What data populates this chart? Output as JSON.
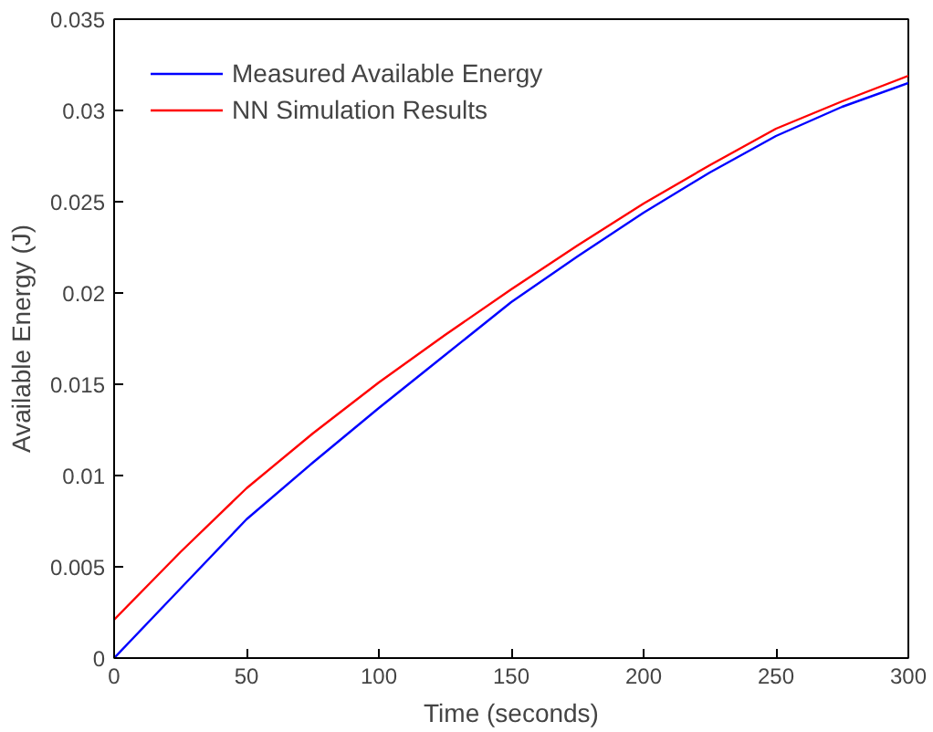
{
  "chart_data": {
    "type": "line",
    "xlabel": "Time (seconds)",
    "ylabel": "Available Energy (J)",
    "x": [
      0,
      25,
      50,
      75,
      100,
      125,
      150,
      175,
      200,
      225,
      250,
      275,
      300
    ],
    "series": [
      {
        "name": "Measured Available Energy",
        "color": "#0000ff",
        "values": [
          0,
          0.0038,
          0.0076,
          0.0107,
          0.0137,
          0.0166,
          0.0195,
          0.022,
          0.0244,
          0.0266,
          0.0286,
          0.0302,
          0.0315
        ]
      },
      {
        "name": "NN Simulation Results",
        "color": "#ff0000",
        "values": [
          0.0021,
          0.0058,
          0.0093,
          0.0123,
          0.0151,
          0.0177,
          0.0202,
          0.0226,
          0.0249,
          0.027,
          0.029,
          0.0305,
          0.0319
        ]
      }
    ],
    "xlim": [
      0,
      300
    ],
    "ylim": [
      0,
      0.035
    ],
    "xticks": [
      0,
      50,
      100,
      150,
      200,
      250,
      300
    ],
    "yticks": [
      0,
      0.005,
      0.01,
      0.015,
      0.02,
      0.025,
      0.03,
      0.035
    ],
    "grid": false,
    "legend": "top left",
    "marker": "none",
    "line_style": "solid"
  }
}
